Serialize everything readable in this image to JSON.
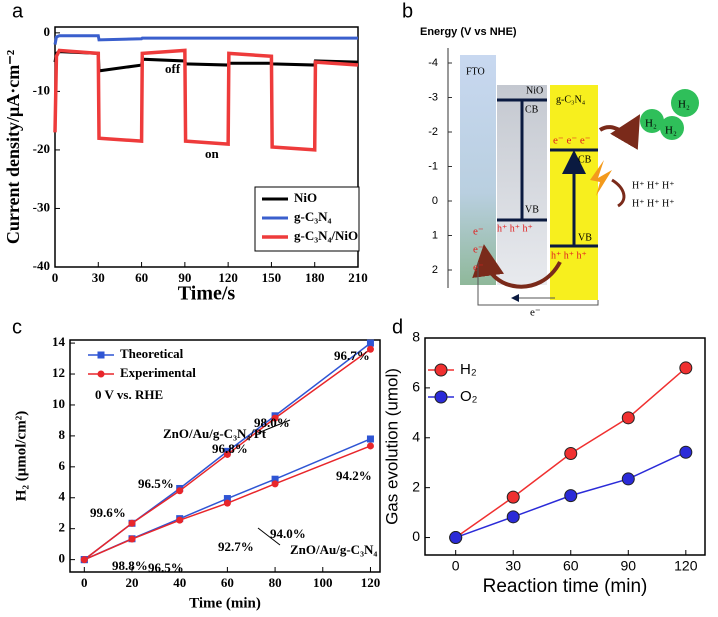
{
  "panel_labels": [
    "a",
    "b",
    "c",
    "d"
  ],
  "chart_data": [
    {
      "type": "line",
      "x_label": "Time/s",
      "y_label": "Current density/μA·cm⁻²",
      "x": [
        0,
        1,
        3,
        30,
        30.5,
        60,
        60.5,
        90,
        90.5,
        120,
        120.5,
        150,
        150.5,
        180,
        180.5,
        210
      ],
      "xlim": [
        0,
        210
      ],
      "xticks": [
        0,
        30,
        60,
        90,
        120,
        150,
        180,
        210
      ],
      "ylim": [
        -40,
        1
      ],
      "yticks": [
        0,
        -10,
        -20,
        -30,
        -40
      ],
      "series": [
        {
          "name": "NiO",
          "color": "#000000",
          "values": [
            -5,
            -3.5,
            -3.2,
            -3.5,
            -6.5,
            -5.5,
            -4.5,
            -4.8,
            -5.3,
            -5.5,
            -5.2,
            -5.2,
            -5.3,
            -5.5,
            -4.8,
            -5
          ]
        },
        {
          "name": "g-C₃N₄",
          "color": "#3a5fcd",
          "values": [
            -2,
            -0.7,
            -0.5,
            -0.5,
            -1.2,
            -1,
            -0.9,
            -0.9,
            -0.9,
            -0.9,
            -0.9,
            -0.9,
            -0.9,
            -0.9,
            -0.9,
            -0.9
          ]
        },
        {
          "name": "g-C₃N₄/NiO",
          "color": "#ee3b3b",
          "values": [
            -17,
            -4,
            -3,
            -3.5,
            -18,
            -18.5,
            -3.5,
            -3,
            -18.5,
            -19,
            -3.5,
            -4,
            -19.5,
            -20,
            -5,
            -5.5
          ]
        }
      ],
      "annotations": [
        "off",
        "on"
      ]
    },
    {
      "type": "line",
      "x_label": "Time (min)",
      "y_label": "H₂ (μmol/cm²)",
      "x": [
        0,
        20,
        40,
        60,
        80,
        120
      ],
      "xlim": [
        -6,
        124
      ],
      "xticks": [
        0,
        20,
        40,
        60,
        80,
        100,
        120
      ],
      "ylim": [
        -0.8,
        14.2
      ],
      "yticks": [
        0,
        2,
        4,
        6,
        8,
        10,
        12,
        14
      ],
      "series": [
        {
          "name": "Theoretical",
          "color": "#2f55d4",
          "marker": "square",
          "values": [
            0,
            2.35,
            4.6,
            7.0,
            9.3,
            14.0
          ]
        },
        {
          "name": "Experimental",
          "color": "#e8262b",
          "marker": "circle",
          "values": [
            0,
            2.35,
            4.45,
            6.8,
            9.15,
            13.6
          ]
        },
        {
          "color": "#2f55d4",
          "marker": "square",
          "values": [
            0,
            1.35,
            2.65,
            3.95,
            5.2,
            7.8
          ]
        },
        {
          "color": "#e8262b",
          "marker": "circle",
          "values": [
            0,
            1.33,
            2.55,
            3.65,
            4.9,
            7.35
          ]
        }
      ],
      "annotations": [
        "0 V vs. RHE",
        "ZnO/Au/g-C₃N₄/Pt",
        "ZnO/Au/g-C₃N₄",
        "99.6%",
        "96.5%",
        "96.8%",
        "98.0%",
        "96.7%",
        "98.8%",
        "96.5%",
        "92.7%",
        "94.0%",
        "94.2%"
      ]
    },
    {
      "type": "line",
      "x_label": "Reaction time (min)",
      "y_label": "Gas evolution (umol)",
      "x": [
        0,
        30,
        60,
        90,
        120
      ],
      "xlim": [
        -16,
        130
      ],
      "xticks": [
        0,
        30,
        60,
        90,
        120
      ],
      "ylim": [
        -0.7,
        8
      ],
      "yticks": [
        0,
        2,
        4,
        6,
        8
      ],
      "series": [
        {
          "name": "H₂",
          "color": "#f03030",
          "marker": "circle",
          "values": [
            0,
            1.62,
            3.37,
            4.8,
            6.8
          ]
        },
        {
          "name": "O₂",
          "color": "#2b2bd8",
          "marker": "circle",
          "values": [
            0,
            0.83,
            1.68,
            2.35,
            3.42
          ]
        }
      ]
    }
  ],
  "diagram": {
    "axis_label": "Energy (V vs NHE)",
    "energy_ticks": [
      -4,
      -3,
      -2,
      -1,
      0,
      1,
      2
    ],
    "fto": "FTO",
    "nio": "NiO",
    "nio_cb": "CB",
    "nio_vb": "VB",
    "nio_holes": "h⁺ h⁺ h⁺",
    "fto_electrons": [
      "e⁻",
      "e⁻",
      "e⁻"
    ],
    "gcn": "g-C₃N₄",
    "gcn_cb": "CB",
    "gcn_vb": "VB",
    "gcn_electrons": "e⁻ e⁻ e⁻",
    "gcn_holes": "h⁺ h⁺ h⁺",
    "protons": [
      "H⁺ H⁺ H⁺",
      "H⁺ H⁺ H⁺"
    ],
    "hydrogen": [
      "H₂",
      "H₂",
      "H₂"
    ],
    "circuit_electron": "e⁻"
  }
}
